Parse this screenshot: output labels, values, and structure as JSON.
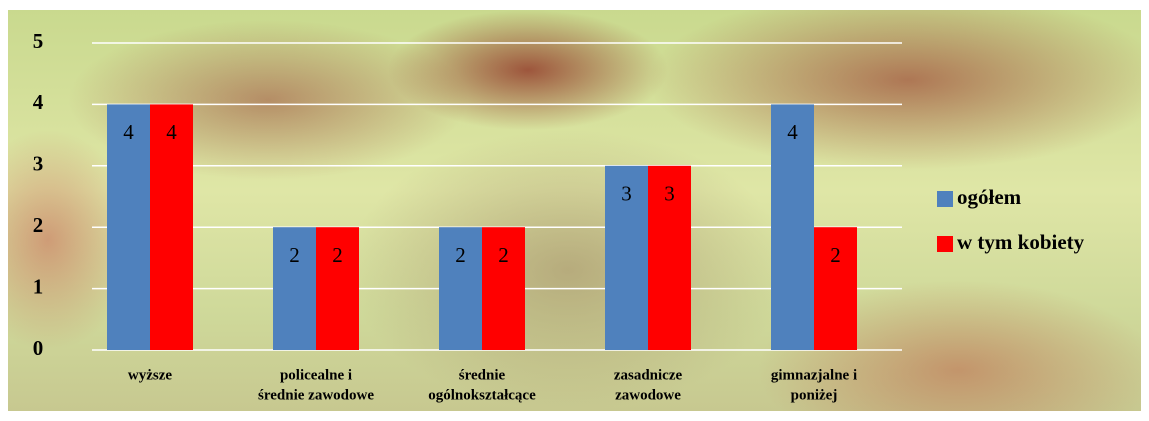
{
  "chart_data": {
    "type": "bar",
    "categories": [
      [
        "wyższe"
      ],
      [
        "policealne i",
        "średnie zawodowe"
      ],
      [
        "średnie",
        "ogólnokształcące"
      ],
      [
        "zasadnicze",
        "zawodowe"
      ],
      [
        "gimnazjalne i",
        "poniżej"
      ]
    ],
    "series": [
      {
        "name": "ogółem",
        "color": "#4f81bd",
        "values": [
          4,
          2,
          2,
          3,
          4
        ]
      },
      {
        "name": "w tym kobiety",
        "color": "#ff0000",
        "values": [
          4,
          2,
          2,
          3,
          2
        ]
      }
    ],
    "ylim": [
      0,
      5
    ],
    "yticks": [
      0,
      1,
      2,
      3,
      4,
      5
    ],
    "grid": true,
    "legend": "right"
  }
}
